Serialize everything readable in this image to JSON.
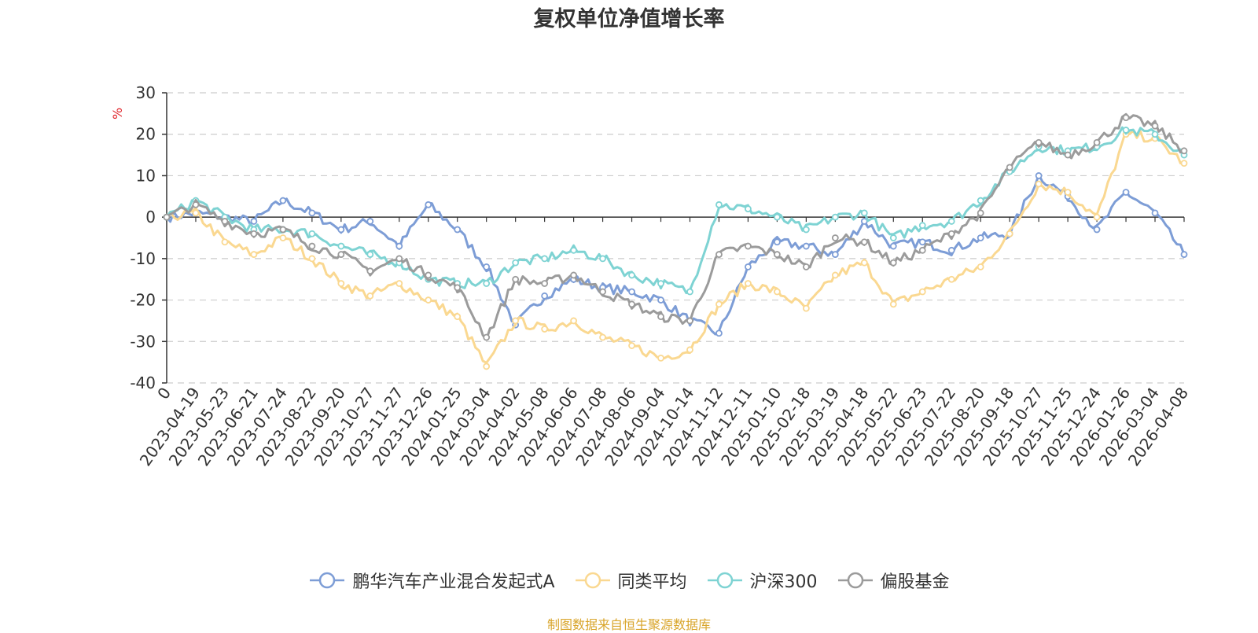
{
  "chart_data": {
    "type": "line",
    "title": "复权单位净值增长率",
    "ylabel": "%",
    "ylim": [
      -40,
      30
    ],
    "yticks": [
      30,
      20,
      10,
      0,
      -10,
      -20,
      -30,
      -40
    ],
    "categories": [
      "0",
      "2023-04-19",
      "2023-05-23",
      "2023-06-21",
      "2023-07-24",
      "2023-08-22",
      "2023-09-20",
      "2023-10-27",
      "2023-11-27",
      "2023-12-26",
      "2024-01-25",
      "2024-03-04",
      "2024-04-02",
      "2024-05-08",
      "2024-06-06",
      "2024-07-08",
      "2024-08-06",
      "2024-09-04",
      "2024-10-14",
      "2024-11-12",
      "2024-12-11",
      "2025-01-10",
      "2025-02-18",
      "2025-03-19",
      "2025-04-18",
      "2025-05-22",
      "2025-06-23",
      "2025-07-22",
      "2025-08-20",
      "2025-09-18",
      "2025-10-27",
      "2025-11-25",
      "2025-12-24",
      "2026-01-26",
      "2026-03-04",
      "2026-04-08"
    ],
    "grid": true,
    "legend_position": "bottom-center",
    "series": [
      {
        "name": "鹏华汽车产业混合发起式A",
        "color": "#7d9dd6",
        "values": [
          0,
          1,
          0,
          -1,
          4,
          1,
          -3,
          -1,
          -7,
          3,
          -3,
          -12,
          -26,
          -19,
          -15,
          -17,
          -18,
          -20,
          -25,
          -28,
          -12,
          -6,
          -7,
          -9,
          -1,
          -7,
          -6,
          -8,
          -5,
          -4,
          10,
          5,
          -3,
          6,
          1,
          -9
        ]
      },
      {
        "name": "同类平均",
        "color": "#fad891",
        "values": [
          0,
          1,
          -6,
          -9,
          -5,
          -10,
          -16,
          -19,
          -16,
          -20,
          -24,
          -36,
          -25,
          -27,
          -25,
          -29,
          -31,
          -34,
          -32,
          -21,
          -16,
          -18,
          -22,
          -14,
          -11,
          -21,
          -18,
          -15,
          -12,
          -4,
          8,
          6,
          0,
          20,
          19,
          13
        ]
      },
      {
        "name": "沪深300",
        "color": "#7ed3d3",
        "values": [
          0,
          4,
          0,
          -3,
          -3,
          -4,
          -7,
          -9,
          -11,
          -15,
          -16,
          -16,
          -11,
          -10,
          -8,
          -10,
          -14,
          -16,
          -18,
          3,
          2,
          0,
          -3,
          0,
          1,
          -5,
          -2,
          -1,
          4,
          11,
          17,
          16,
          17,
          21,
          20,
          15
        ]
      },
      {
        "name": "偏股基金",
        "color": "#9b9b9b",
        "values": [
          0,
          3,
          -1,
          -4,
          -3,
          -7,
          -9,
          -13,
          -10,
          -14,
          -17,
          -29,
          -15,
          -16,
          -14,
          -18,
          -21,
          -24,
          -25,
          -9,
          -7,
          -9,
          -12,
          -5,
          -6,
          -11,
          -8,
          -4,
          1,
          12,
          18,
          15,
          18,
          24,
          22,
          16
        ]
      }
    ]
  },
  "footer": {
    "source_text": "制图数据来自恒生聚源数据库",
    "source_color": "#d9a52b"
  }
}
